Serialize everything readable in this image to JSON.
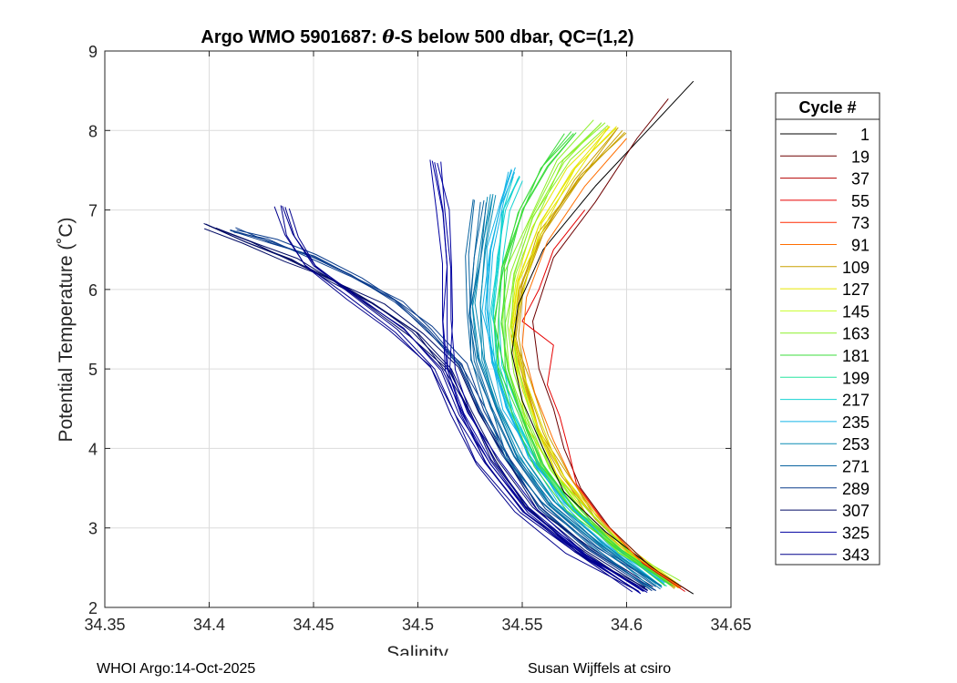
{
  "chart_data": {
    "type": "line",
    "title": "Argo WMO 5901687: θ-S below 500 dbar,  QC=(1,2)",
    "title_prefix": "Argo WMO 5901687: ",
    "title_theta": "θ",
    "title_suffix": "-S below 500 dbar,  QC=(1,2)",
    "xlabel": "Salinity",
    "ylabel": "Potential Temperature (˚C)",
    "xlim": [
      34.35,
      34.65
    ],
    "ylim": [
      2,
      9
    ],
    "xticks": [
      "34.35",
      "34.4",
      "34.45",
      "34.5",
      "34.55",
      "34.6",
      "34.65"
    ],
    "yticks": [
      "2",
      "3",
      "4",
      "5",
      "6",
      "7",
      "8",
      "9"
    ],
    "grid": true,
    "legend_title": "Cycle #",
    "legend_position": "outside-right",
    "series": [
      {
        "name": "1",
        "color": "#000000"
      },
      {
        "name": "19",
        "color": "#6e0000"
      },
      {
        "name": "37",
        "color": "#b40000"
      },
      {
        "name": "55",
        "color": "#e60000"
      },
      {
        "name": "73",
        "color": "#ff2a00"
      },
      {
        "name": "91",
        "color": "#ff6e00"
      },
      {
        "name": "109",
        "color": "#c9a000"
      },
      {
        "name": "127",
        "color": "#e6e600"
      },
      {
        "name": "145",
        "color": "#c8ff2a"
      },
      {
        "name": "163",
        "color": "#8cf02a"
      },
      {
        "name": "181",
        "color": "#3cdc3c"
      },
      {
        "name": "199",
        "color": "#28e6a0"
      },
      {
        "name": "217",
        "color": "#14d2d2"
      },
      {
        "name": "235",
        "color": "#14b4e6"
      },
      {
        "name": "253",
        "color": "#0a8cb4"
      },
      {
        "name": "271",
        "color": "#0a64a0"
      },
      {
        "name": "289",
        "color": "#0a3c8c"
      },
      {
        "name": "307",
        "color": "#000a64"
      },
      {
        "name": "325",
        "color": "#0000a0"
      },
      {
        "name": "343",
        "color": "#00008c"
      }
    ],
    "curves": [
      {
        "group": "early",
        "color": "#000000",
        "points": [
          [
            34.632,
            2.17
          ],
          [
            34.615,
            2.45
          ],
          [
            34.59,
            2.95
          ],
          [
            34.57,
            3.45
          ],
          [
            34.56,
            4.0
          ],
          [
            34.55,
            4.6
          ],
          [
            34.545,
            5.2
          ],
          [
            34.548,
            5.8
          ],
          [
            34.56,
            6.5
          ],
          [
            34.585,
            7.3
          ],
          [
            34.61,
            8.0
          ],
          [
            34.632,
            8.62
          ]
        ]
      },
      {
        "group": "early",
        "color": "#6e0000",
        "points": [
          [
            34.63,
            2.2
          ],
          [
            34.612,
            2.5
          ],
          [
            34.592,
            3.0
          ],
          [
            34.578,
            3.5
          ],
          [
            34.57,
            4.0
          ],
          [
            34.565,
            4.5
          ],
          [
            34.558,
            5.0
          ],
          [
            34.555,
            5.6
          ],
          [
            34.565,
            6.4
          ],
          [
            34.585,
            7.1
          ],
          [
            34.605,
            7.9
          ],
          [
            34.62,
            8.4
          ]
        ]
      },
      {
        "group": "early",
        "color": "#e60000",
        "points": [
          [
            34.628,
            2.2
          ],
          [
            34.608,
            2.55
          ],
          [
            34.59,
            3.05
          ],
          [
            34.576,
            3.55
          ],
          [
            34.572,
            4.0
          ],
          [
            34.568,
            4.4
          ],
          [
            34.562,
            4.8
          ],
          [
            34.565,
            5.3
          ],
          [
            34.55,
            5.6
          ],
          [
            34.558,
            6.0
          ],
          [
            34.565,
            6.5
          ],
          [
            34.58,
            7.0
          ]
        ]
      },
      {
        "group": "early",
        "color": "#ff6e00",
        "points": [
          [
            34.626,
            2.25
          ],
          [
            34.606,
            2.6
          ],
          [
            34.588,
            3.1
          ],
          [
            34.574,
            3.6
          ],
          [
            34.565,
            4.1
          ],
          [
            34.556,
            4.7
          ],
          [
            34.55,
            5.3
          ],
          [
            34.552,
            5.9
          ],
          [
            34.562,
            6.6
          ],
          [
            34.58,
            7.3
          ],
          [
            34.6,
            7.9
          ]
        ]
      },
      {
        "group": "mid",
        "color": "#c9a000",
        "points": [
          [
            34.625,
            2.25
          ],
          [
            34.603,
            2.65
          ],
          [
            34.584,
            3.15
          ],
          [
            34.57,
            3.65
          ],
          [
            34.56,
            4.2
          ],
          [
            34.552,
            4.8
          ],
          [
            34.547,
            5.4
          ],
          [
            34.55,
            6.0
          ],
          [
            34.56,
            6.7
          ],
          [
            34.578,
            7.4
          ],
          [
            34.598,
            8.0
          ]
        ]
      },
      {
        "group": "mid",
        "color": "#e6e600",
        "points": [
          [
            34.624,
            2.28
          ],
          [
            34.6,
            2.7
          ],
          [
            34.58,
            3.2
          ],
          [
            34.566,
            3.7
          ],
          [
            34.556,
            4.3
          ],
          [
            34.548,
            4.9
          ],
          [
            34.545,
            5.5
          ],
          [
            34.548,
            6.1
          ],
          [
            34.558,
            6.8
          ],
          [
            34.574,
            7.5
          ],
          [
            34.592,
            8.05
          ]
        ]
      },
      {
        "group": "mid",
        "color": "#8cf02a",
        "points": [
          [
            34.623,
            2.3
          ],
          [
            34.598,
            2.72
          ],
          [
            34.578,
            3.22
          ],
          [
            34.563,
            3.75
          ],
          [
            34.553,
            4.35
          ],
          [
            34.546,
            4.95
          ],
          [
            34.543,
            5.55
          ],
          [
            34.546,
            6.2
          ],
          [
            34.555,
            6.9
          ],
          [
            34.57,
            7.6
          ],
          [
            34.588,
            8.1
          ]
        ]
      },
      {
        "group": "mid",
        "color": "#3cdc3c",
        "points": [
          [
            34.622,
            2.3
          ],
          [
            34.596,
            2.75
          ],
          [
            34.575,
            3.25
          ],
          [
            34.56,
            3.8
          ],
          [
            34.55,
            4.4
          ],
          [
            34.543,
            5.0
          ],
          [
            34.54,
            5.6
          ],
          [
            34.543,
            6.3
          ],
          [
            34.55,
            7.0
          ],
          [
            34.562,
            7.55
          ],
          [
            34.575,
            7.95
          ]
        ]
      },
      {
        "group": "late",
        "color": "#14d2d2",
        "points": [
          [
            34.62,
            2.3
          ],
          [
            34.594,
            2.78
          ],
          [
            34.572,
            3.3
          ],
          [
            34.557,
            3.85
          ],
          [
            34.546,
            4.45
          ],
          [
            34.539,
            5.05
          ],
          [
            34.536,
            5.7
          ],
          [
            34.538,
            6.4
          ],
          [
            34.542,
            7.0
          ],
          [
            34.548,
            7.4
          ]
        ]
      },
      {
        "group": "late",
        "color": "#14b4e6",
        "points": [
          [
            34.618,
            2.3
          ],
          [
            34.592,
            2.8
          ],
          [
            34.57,
            3.32
          ],
          [
            34.554,
            3.9
          ],
          [
            34.543,
            4.5
          ],
          [
            34.536,
            5.1
          ],
          [
            34.533,
            5.75
          ],
          [
            34.535,
            6.5
          ],
          [
            34.54,
            7.1
          ],
          [
            34.545,
            7.5
          ]
        ]
      },
      {
        "group": "late",
        "color": "#0a8cb4",
        "points": [
          [
            34.616,
            2.28
          ],
          [
            34.59,
            2.78
          ],
          [
            34.566,
            3.32
          ],
          [
            34.55,
            3.92
          ],
          [
            34.539,
            4.52
          ],
          [
            34.532,
            5.12
          ],
          [
            34.53,
            5.8
          ],
          [
            34.532,
            6.5
          ],
          [
            34.536,
            7.2
          ]
        ]
      },
      {
        "group": "late",
        "color": "#0a64a0",
        "points": [
          [
            34.614,
            2.26
          ],
          [
            34.586,
            2.76
          ],
          [
            34.562,
            3.3
          ],
          [
            34.546,
            3.9
          ],
          [
            34.535,
            4.5
          ],
          [
            34.527,
            5.1
          ],
          [
            34.525,
            5.7
          ],
          [
            34.527,
            6.4
          ],
          [
            34.53,
            7.1
          ]
        ]
      },
      {
        "group": "latest",
        "color": "#0a3c8c",
        "points": [
          [
            34.612,
            2.24
          ],
          [
            34.582,
            2.74
          ],
          [
            34.558,
            3.28
          ],
          [
            34.542,
            3.88
          ],
          [
            34.53,
            4.48
          ],
          [
            34.52,
            5.05
          ],
          [
            34.505,
            5.5
          ],
          [
            34.49,
            5.85
          ],
          [
            34.47,
            6.15
          ],
          [
            34.45,
            6.4
          ],
          [
            34.43,
            6.6
          ],
          [
            34.41,
            6.75
          ]
        ]
      },
      {
        "group": "latest",
        "color": "#000a64",
        "points": [
          [
            34.61,
            2.22
          ],
          [
            34.58,
            2.72
          ],
          [
            34.555,
            3.26
          ],
          [
            34.538,
            3.86
          ],
          [
            34.526,
            4.46
          ],
          [
            34.516,
            5.0
          ],
          [
            34.5,
            5.45
          ],
          [
            34.48,
            5.8
          ],
          [
            34.46,
            6.1
          ],
          [
            34.44,
            6.35
          ],
          [
            34.42,
            6.6
          ],
          [
            34.4,
            6.8
          ]
        ]
      },
      {
        "group": "latest",
        "color": "#0000a0",
        "points": [
          [
            34.608,
            2.2
          ],
          [
            34.578,
            2.7
          ],
          [
            34.552,
            3.24
          ],
          [
            34.535,
            3.84
          ],
          [
            34.522,
            4.44
          ],
          [
            34.514,
            5.0
          ],
          [
            34.512,
            5.6
          ],
          [
            34.514,
            6.3
          ],
          [
            34.512,
            7.0
          ],
          [
            34.508,
            7.6
          ]
        ]
      },
      {
        "group": "latest",
        "color": "#00008c",
        "points": [
          [
            34.606,
            2.2
          ],
          [
            34.575,
            2.7
          ],
          [
            34.55,
            3.22
          ],
          [
            34.532,
            3.82
          ],
          [
            34.518,
            4.42
          ],
          [
            34.508,
            5.0
          ],
          [
            34.49,
            5.5
          ],
          [
            34.47,
            5.9
          ],
          [
            34.45,
            6.3
          ],
          [
            34.44,
            6.7
          ],
          [
            34.435,
            7.05
          ]
        ]
      }
    ]
  },
  "footer": {
    "left": "WHOI Argo:14-Oct-2025",
    "right": "Susan Wijffels at csiro"
  }
}
